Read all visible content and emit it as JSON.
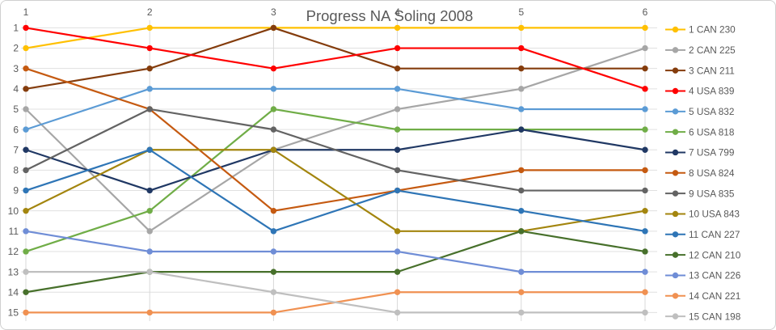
{
  "chart_data": {
    "type": "line",
    "title": "Progress NA Soling 2008",
    "xlabel": "",
    "ylabel": "",
    "x": [
      1,
      2,
      3,
      4,
      5,
      6
    ],
    "x_tick_labels": [
      "1",
      "2",
      "3",
      "4",
      "5",
      "6"
    ],
    "y_tick_labels": [
      "1",
      "2",
      "3",
      "4",
      "5",
      "6",
      "7",
      "8",
      "9",
      "10",
      "11",
      "12",
      "13",
      "14",
      "15"
    ],
    "ylim": [
      1,
      15
    ],
    "y_axis_inverted": true,
    "grid": true,
    "legend_position": "right",
    "series": [
      {
        "name": "1 CAN 230",
        "color": "#FFC000",
        "values": [
          2,
          1,
          1,
          1,
          1,
          1
        ]
      },
      {
        "name": "2 CAN 225",
        "color": "#A6A6A6",
        "values": [
          5,
          11,
          7,
          5,
          4,
          2
        ]
      },
      {
        "name": "3 CAN 211",
        "color": "#843C0C",
        "values": [
          4,
          3,
          1,
          3,
          3,
          3
        ]
      },
      {
        "name": "4 USA 839",
        "color": "#FF0000",
        "values": [
          1,
          2,
          3,
          2,
          2,
          4
        ]
      },
      {
        "name": "5 USA 832",
        "color": "#5B9BD5",
        "values": [
          6,
          4,
          4,
          4,
          5,
          5
        ]
      },
      {
        "name": "6 USA 818",
        "color": "#70AD47",
        "values": [
          12,
          10,
          5,
          6,
          6,
          6
        ]
      },
      {
        "name": "7 USA 799",
        "color": "#203864",
        "values": [
          7,
          9,
          7,
          7,
          6,
          7
        ]
      },
      {
        "name": "8 USA 824",
        "color": "#C55A11",
        "values": [
          3,
          5,
          10,
          9,
          8,
          8
        ]
      },
      {
        "name": "9 USA 835",
        "color": "#636363",
        "values": [
          8,
          5,
          6,
          8,
          9,
          9
        ]
      },
      {
        "name": "10 USA 843",
        "color": "#A3850E",
        "values": [
          10,
          7,
          7,
          11,
          11,
          10
        ]
      },
      {
        "name": "11 CAN 227",
        "color": "#2E75B6",
        "values": [
          9,
          7,
          11,
          9,
          10,
          11
        ]
      },
      {
        "name": "12 CAN 210",
        "color": "#47702B",
        "values": [
          14,
          13,
          13,
          13,
          11,
          12
        ]
      },
      {
        "name": "13 CAN 226",
        "color": "#6F8DD6",
        "values": [
          11,
          12,
          12,
          12,
          13,
          13
        ]
      },
      {
        "name": "14 CAN 221",
        "color": "#F09152",
        "values": [
          15,
          15,
          15,
          14,
          14,
          14
        ]
      },
      {
        "name": "15 CAN 198",
        "color": "#BFBFBF",
        "values": [
          13,
          13,
          14,
          15,
          15,
          15
        ]
      }
    ]
  }
}
